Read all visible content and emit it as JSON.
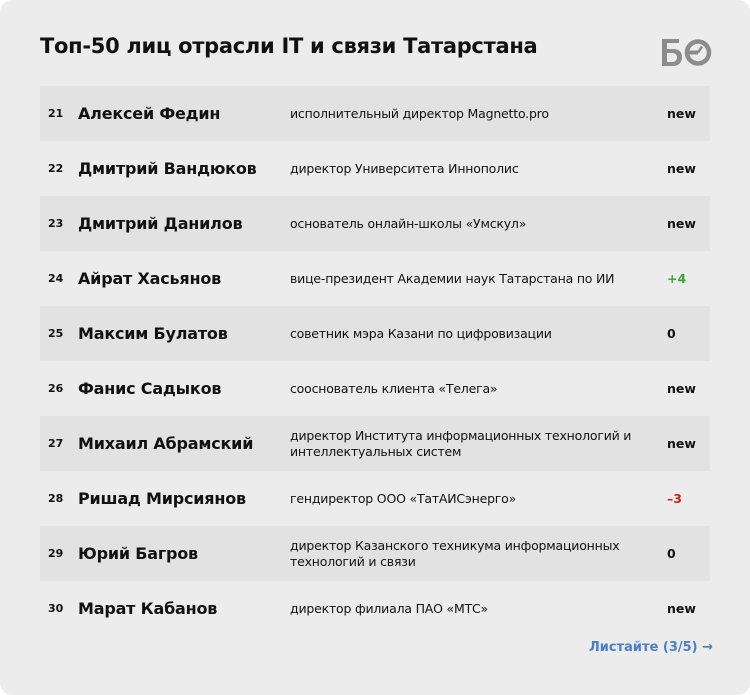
{
  "title": "Топ-50 лиц отрасли IT и связи Татарстана",
  "logo": "БО",
  "rows": [
    {
      "rank": "21",
      "name": "Алексей Федин",
      "role": "исполнительный директор Magnetto.pro",
      "change": "new",
      "trend": "new"
    },
    {
      "rank": "22",
      "name": "Дмитрий Вандюков",
      "role": "директор Университета Иннополис",
      "change": "new",
      "trend": "new"
    },
    {
      "rank": "23",
      "name": "Дмитрий Данилов",
      "role": "основатель онлайн-школы «Умскул»",
      "change": "new",
      "trend": "new"
    },
    {
      "rank": "24",
      "name": "Айрат Хасьянов",
      "role": "вице-президент Академии наук Татарстана по ИИ",
      "change": "+4",
      "trend": "up"
    },
    {
      "rank": "25",
      "name": "Максим Булатов",
      "role": "советник мэра Казани по цифровизации",
      "change": "0",
      "trend": "same"
    },
    {
      "rank": "26",
      "name": "Фанис Садыков",
      "role": "сооснователь клиента «Телега»",
      "change": "new",
      "trend": "new"
    },
    {
      "rank": "27",
      "name": "Михаил Абрамский",
      "role": "директор Института информационных технологий и интеллектуальных систем",
      "change": "new",
      "trend": "new"
    },
    {
      "rank": "28",
      "name": "Ришад Мирсиянов",
      "role": "гендиректор ООО «ТатАИСэнерго»",
      "change": "–3",
      "trend": "down"
    },
    {
      "rank": "29",
      "name": "Юрий Багров",
      "role": "директор Казанского техникума информационных технологий и связи",
      "change": "0",
      "trend": "same"
    },
    {
      "rank": "30",
      "name": "Марат Кабанов",
      "role": "директор филиала ПАО «МТС»",
      "change": "new",
      "trend": "new"
    }
  ],
  "pager": "Листайте (3/5) →",
  "colors": {
    "up": "#3aa53a",
    "down": "#d42020",
    "link": "#4a7fc7",
    "logo": "#8c8c8c"
  }
}
